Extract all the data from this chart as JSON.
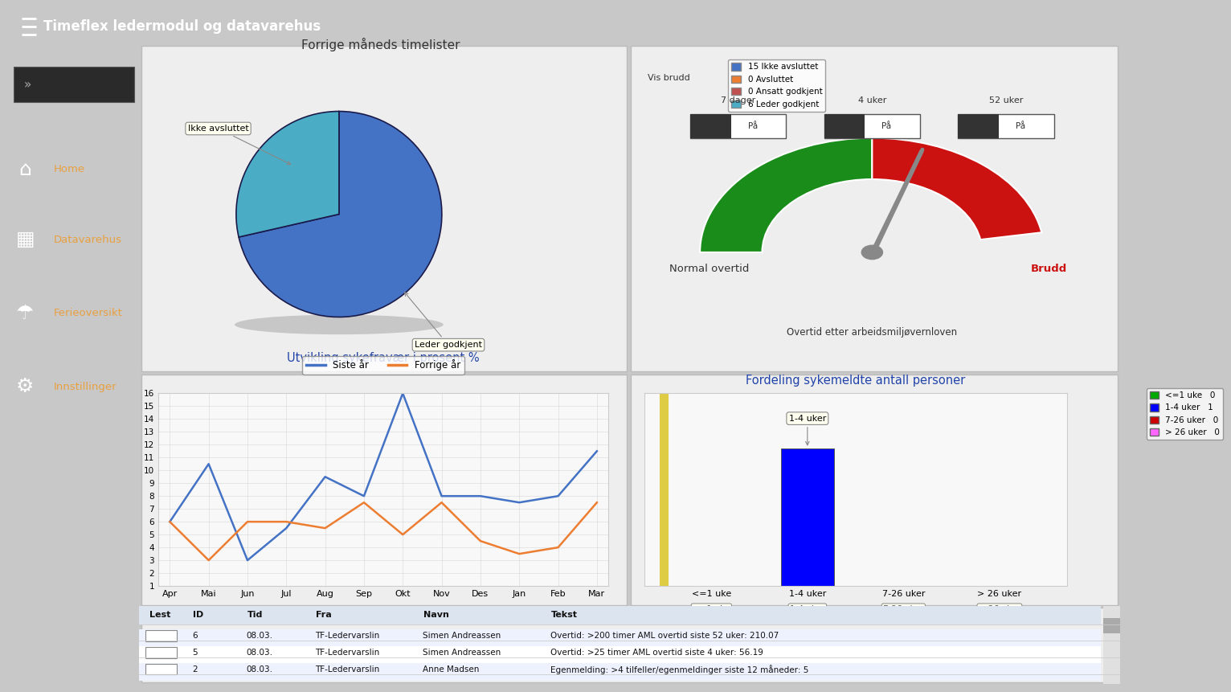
{
  "header_text": "Timeflex ledermodul og datavarehus",
  "header_bg": "#1565c0",
  "sidebar_bg": "#111111",
  "sidebar_items": [
    "Home",
    "Datavarehus",
    "Ferieoversikt",
    "Innstillinger"
  ],
  "main_bg": "#e8e8e8",
  "pie_title": "Forrige måneds timelister",
  "pie_values": [
    15,
    0,
    0,
    6
  ],
  "pie_labels_legend": [
    "15 Ikke avsluttet",
    "0 Avsluttet",
    "0 Ansatt godkjent",
    "6 Leder godkjent"
  ],
  "pie_colors": [
    "#4472c4",
    "#ed7d31",
    "#c0504d",
    "#4bacc6"
  ],
  "gauge_title": "Overtid etter arbeidsmiljøvernloven",
  "gauge_left_label": "Normal overtid",
  "gauge_right_label": "Brudd",
  "gauge_vis_label": "Vis brudd",
  "gauge_7d_label": "7 dager",
  "gauge_4u_label": "4 uker",
  "gauge_52u_label": "52 uker",
  "gauge_pa_label": "På",
  "gauge_green_color": "#1a8c1a",
  "gauge_red_color": "#cc1111",
  "gauge_needle_color": "#888888",
  "line_title": "Utvikling sykefravær i prosent %",
  "line_months": [
    "Apr",
    "Mai",
    "Jun",
    "Jul",
    "Aug",
    "Sep",
    "Okt",
    "Nov",
    "Des",
    "Jan",
    "Feb",
    "Mar"
  ],
  "line_siste_ar": [
    6.0,
    10.5,
    3.0,
    5.5,
    9.5,
    8.0,
    16.0,
    8.0,
    8.0,
    7.5,
    8.0,
    11.5
  ],
  "line_forrige_ar": [
    6.0,
    3.0,
    6.0,
    6.0,
    5.5,
    7.5,
    5.0,
    7.5,
    4.5,
    3.5,
    4.0,
    7.5
  ],
  "line_siste_color": "#4472c4",
  "line_forrige_color": "#ed7d31",
  "line_legend_siste": "Siste år",
  "line_legend_forrige": "Forrige år",
  "bar_title": "Fordeling sykemeldte antall personer",
  "bar_categories": [
    "<=1 uke",
    "1-4 uker",
    "7-26 uker",
    "> 26 uker"
  ],
  "bar_values": [
    0,
    1,
    0,
    0
  ],
  "bar_colors": [
    "#00aa00",
    "#0000ff",
    "#cc0000",
    "#ff66ff"
  ],
  "bar_legend_labels": [
    "<=1 uke   0",
    "1-4 uker   1",
    "7-26 uker   0",
    "> 26 uker   0"
  ],
  "bar_legend_colors": [
    "#00aa00",
    "#0000ff",
    "#cc0000",
    "#ff66ff"
  ],
  "table_headers": [
    "Lest",
    "ID",
    "Tid",
    "Fra",
    "Navn",
    "Tekst"
  ],
  "table_rows": [
    [
      "",
      "6",
      "08.03.",
      "TF-Ledervarslin",
      "Simen Andreassen",
      "Overtid: >200 timer AML overtid siste 52 uker: 210.07"
    ],
    [
      "",
      "5",
      "08.03.",
      "TF-Ledervarslin",
      "Simen Andreassen",
      "Overtid: >25 timer AML overtid siste 4 uker: 56.19"
    ],
    [
      "",
      "2",
      "08.03.",
      "TF-Ledervarslin",
      "Anne Madsen",
      "Egenmelding: >4 tilfeller/egenmeldinger siste 12 måneder: 5"
    ]
  ]
}
